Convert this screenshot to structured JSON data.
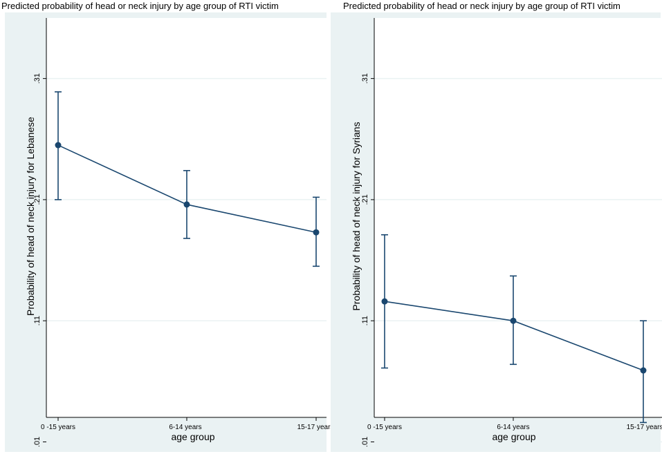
{
  "chart_data": [
    {
      "type": "line",
      "title": "Predicted probability of head or neck injury by age group of RTI victim",
      "xlabel": "age group",
      "ylabel": "Probability of head of neck injury for Lebanese",
      "categories": [
        "0 -15 years",
        "6-14 years",
        "15-17 years"
      ],
      "yticks": [
        ".01",
        ".11",
        ".21",
        ".31"
      ],
      "ylim": [
        0.0,
        0.36
      ],
      "grid": true,
      "series": [
        {
          "values": [
            0.255,
            0.206,
            0.183
          ],
          "ci_lower": [
            0.21,
            0.178,
            0.155
          ],
          "ci_upper": [
            0.299,
            0.234,
            0.212
          ]
        }
      ]
    },
    {
      "type": "line",
      "title": "Predicted probability of head or neck injury by age group of RTI victim",
      "xlabel": "age group",
      "ylabel": "Probability of head of neck injury for Syrians",
      "categories": [
        "0 -15 years",
        "6-14 years",
        "15-17 years"
      ],
      "yticks": [
        ".01",
        ".11",
        ".21",
        ".31"
      ],
      "ylim": [
        0.0,
        0.36
      ],
      "grid": true,
      "series": [
        {
          "values": [
            0.126,
            0.11,
            0.069
          ],
          "ci_lower": [
            0.071,
            0.074,
            0.026
          ],
          "ci_upper": [
            0.181,
            0.147,
            0.11
          ]
        }
      ]
    }
  ],
  "colors": {
    "frame_background": "#eaf2f3",
    "plot_background": "#ffffff",
    "gridline": "#eaf2f3",
    "series": "#1a476f"
  }
}
